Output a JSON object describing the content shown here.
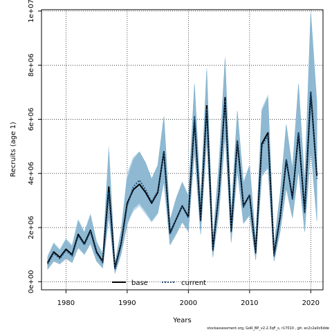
{
  "chart_data": {
    "type": "line",
    "xlabel": "Years",
    "ylabel": "Recruits (age 1)",
    "xlim": [
      1976,
      2022
    ],
    "ylim": [
      -300000,
      10050000
    ],
    "xticks": [
      1980,
      1990,
      2000,
      2010,
      2020
    ],
    "yticks": [
      0,
      2000000,
      4000000,
      6000000,
      8000000,
      10000000
    ],
    "ytick_labels": [
      "0e+00",
      "2e+06",
      "4e+06",
      "6e+06",
      "8e+06",
      "1e+07"
    ],
    "grid": true,
    "legend_position": "bottom-center",
    "x": [
      1977,
      1978,
      1979,
      1980,
      1981,
      1982,
      1983,
      1984,
      1985,
      1986,
      1987,
      1988,
      1989,
      1990,
      1991,
      1992,
      1993,
      1994,
      1995,
      1996,
      1997,
      1998,
      1999,
      2000,
      2001,
      2002,
      2003,
      2004,
      2005,
      2006,
      2007,
      2008,
      2009,
      2010,
      2011,
      2012,
      2013,
      2014,
      2015,
      2016,
      2017,
      2018,
      2019,
      2020,
      2021
    ],
    "series": [
      {
        "name": "base",
        "color": "#000000",
        "line_style": "solid",
        "band_color": "#b3d4ea",
        "values": [
          700000,
          1100000,
          900000,
          1200000,
          1000000,
          1750000,
          1400000,
          1900000,
          1100000,
          750000,
          3500000,
          500000,
          1400000,
          2900000,
          3400000,
          3600000,
          3300000,
          2900000,
          3300000,
          4800000,
          1800000,
          2300000,
          2800000,
          2400000,
          6000000,
          2300000,
          6500000,
          1200000,
          3300000,
          6800000,
          1900000,
          5200000,
          2800000,
          3200000,
          1100000,
          5100000,
          5500000,
          1000000,
          2400000,
          4500000,
          3100000,
          5500000,
          2600000,
          7000000,
          3900000
        ],
        "lower": [
          500000,
          800000,
          700000,
          900000,
          750000,
          1300000,
          1050000,
          1450000,
          800000,
          550000,
          2600000,
          350000,
          1100000,
          2200000,
          2600000,
          2800000,
          2500000,
          2200000,
          2500000,
          3700000,
          1400000,
          1800000,
          2200000,
          1900000,
          4800000,
          1800000,
          5300000,
          950000,
          2600000,
          5500000,
          1500000,
          4100000,
          2200000,
          2500000,
          850000,
          4000000,
          4300000,
          800000,
          1900000,
          3500000,
          2400000,
          4100000,
          1900000,
          5000000,
          2300000
        ],
        "upper": [
          950000,
          1450000,
          1200000,
          1600000,
          1350000,
          2300000,
          1850000,
          2500000,
          1500000,
          1050000,
          5000000,
          700000,
          1900000,
          4000000,
          4600000,
          4800000,
          4400000,
          3800000,
          4300000,
          6100000,
          2300000,
          3100000,
          3700000,
          3200000,
          7300000,
          3100000,
          7900000,
          1600000,
          4400000,
          8300000,
          2600000,
          6300000,
          3700000,
          4300000,
          1550000,
          6400000,
          6900000,
          1400000,
          3300000,
          5800000,
          4200000,
          7300000,
          3700000,
          10000000,
          6700000
        ]
      },
      {
        "name": "current",
        "color": "#1f4e79",
        "line_style": "dotted",
        "band_color": "#7faec8",
        "values": [
          650000,
          1050000,
          850000,
          1150000,
          950000,
          1700000,
          1350000,
          1850000,
          1050000,
          700000,
          3300000,
          450000,
          1350000,
          2800000,
          3500000,
          3750000,
          3400000,
          2950000,
          3350000,
          4800000,
          1750000,
          2300000,
          2800000,
          2350000,
          6100000,
          2250000,
          6400000,
          1150000,
          3300000,
          6700000,
          1850000,
          5200000,
          2750000,
          3200000,
          1050000,
          5000000,
          5400000,
          950000,
          2350000,
          4500000,
          3050000,
          5500000,
          2550000,
          7000000,
          3800000
        ],
        "lower": [
          450000,
          750000,
          650000,
          850000,
          700000,
          1250000,
          1000000,
          1400000,
          750000,
          500000,
          2400000,
          300000,
          1000000,
          2100000,
          2700000,
          2900000,
          2600000,
          2250000,
          2550000,
          3700000,
          1350000,
          1750000,
          2200000,
          1850000,
          4850000,
          1750000,
          5200000,
          900000,
          2550000,
          5400000,
          1450000,
          4100000,
          2150000,
          2450000,
          800000,
          3900000,
          4200000,
          750000,
          1850000,
          3450000,
          2350000,
          4100000,
          1850000,
          4900000,
          2250000
        ],
        "upper": [
          900000,
          1400000,
          1150000,
          1550000,
          1300000,
          2250000,
          1800000,
          2450000,
          1450000,
          1000000,
          4800000,
          650000,
          1850000,
          3800000,
          4500000,
          4800000,
          4400000,
          3800000,
          4300000,
          6100000,
          2250000,
          3050000,
          3650000,
          3150000,
          7300000,
          3050000,
          7800000,
          1550000,
          4350000,
          8200000,
          2550000,
          6300000,
          3600000,
          4300000,
          1500000,
          6300000,
          6800000,
          1350000,
          3250000,
          5800000,
          4150000,
          7300000,
          3650000,
          9900000,
          6500000
        ]
      }
    ]
  },
  "footer_text": "stockassessment.org, GoR_BP_v2.2.3qF_s, r17010 , git: ec2c2a0c6dde"
}
